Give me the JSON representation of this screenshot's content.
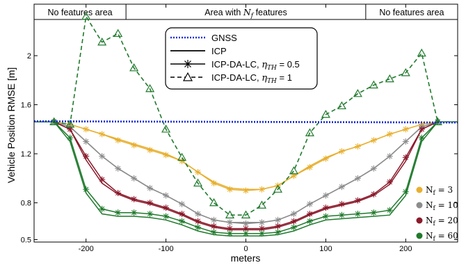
{
  "chart_data": {
    "type": "line",
    "xlabel": "meters",
    "ylabel": "Vehicle Position RMSE [m]",
    "xlim": [
      -265,
      265
    ],
    "ylim": [
      0.48,
      2.42
    ],
    "xticks": [
      -200,
      -100,
      0,
      100,
      200
    ],
    "xtick_labels": [
      "-200",
      "-100",
      "0",
      "100",
      "200"
    ],
    "yticks": [
      0.5,
      0.8,
      1.2,
      1.6,
      2.0
    ],
    "ytick_labels": [
      "0.5",
      "0.8",
      "1.2",
      "1.6",
      "2"
    ],
    "regions": [
      {
        "label": "No features area",
        "from": -265,
        "to": -150
      },
      {
        "label": "Area with N_f features",
        "from": -150,
        "to": 150
      },
      {
        "label": "No features area",
        "from": 150,
        "to": 265
      }
    ],
    "legend": {
      "gnss": "GNSS",
      "icp": "ICP",
      "icp_da_lc_05": "ICP-DA-LC, η_TH = 0.5",
      "icp_da_lc_1": "ICP-DA-LC, η_TH = 1"
    },
    "nf_legend": [
      {
        "label": "N_f =  3",
        "color": "#e8b030"
      },
      {
        "label": "N_f = 10",
        "color": "#8c8c8c"
      },
      {
        "label": "N_f = 20",
        "color": "#8b1a2b"
      },
      {
        "label": "N_f = 60",
        "color": "#1f7a2c"
      }
    ],
    "gnss": {
      "color": "#1a2fd9",
      "x": [
        -265,
        265
      ],
      "y": [
        1.465,
        1.455
      ]
    },
    "series": [
      {
        "name": "N_f = 3",
        "color": "#e8b030",
        "x": [
          -265,
          -240,
          -220,
          -200,
          -180,
          -160,
          -140,
          -120,
          -100,
          -80,
          -60,
          -40,
          -20,
          0,
          20,
          40,
          60,
          80,
          100,
          120,
          140,
          160,
          180,
          200,
          220,
          240,
          265
        ],
        "icp": [
          1.46,
          1.46,
          1.44,
          1.4,
          1.36,
          1.32,
          1.28,
          1.24,
          1.2,
          1.14,
          1.05,
          0.97,
          0.92,
          0.91,
          0.91,
          0.94,
          1.02,
          1.1,
          1.17,
          1.22,
          1.26,
          1.31,
          1.36,
          1.4,
          1.44,
          1.46,
          1.46
        ],
        "lc05": [
          1.46,
          1.46,
          1.44,
          1.4,
          1.36,
          1.31,
          1.27,
          1.23,
          1.19,
          1.14,
          1.05,
          0.96,
          0.91,
          0.9,
          0.91,
          0.94,
          1.02,
          1.09,
          1.16,
          1.22,
          1.26,
          1.31,
          1.36,
          1.4,
          1.44,
          1.46,
          1.46
        ],
        "lc1": null
      },
      {
        "name": "N_f = 10",
        "color": "#8c8c8c",
        "x": [
          -265,
          -240,
          -220,
          -200,
          -180,
          -160,
          -140,
          -120,
          -100,
          -80,
          -60,
          -40,
          -20,
          0,
          20,
          40,
          60,
          80,
          100,
          120,
          140,
          160,
          180,
          200,
          220,
          240,
          265
        ],
        "icp": [
          1.46,
          1.46,
          1.42,
          1.3,
          1.18,
          1.08,
          1.0,
          0.92,
          0.86,
          0.79,
          0.71,
          0.66,
          0.64,
          0.64,
          0.64,
          0.66,
          0.71,
          0.79,
          0.86,
          0.93,
          1.0,
          1.08,
          1.18,
          1.3,
          1.42,
          1.46,
          1.46
        ],
        "lc05": [
          1.46,
          1.46,
          1.42,
          1.3,
          1.18,
          1.08,
          1.0,
          0.92,
          0.86,
          0.79,
          0.71,
          0.66,
          0.64,
          0.63,
          0.64,
          0.66,
          0.71,
          0.79,
          0.86,
          0.93,
          1.0,
          1.08,
          1.18,
          1.3,
          1.42,
          1.46,
          1.46
        ],
        "lc1": null
      },
      {
        "name": "N_f = 20",
        "color": "#8b1a2b",
        "x": [
          -265,
          -240,
          -220,
          -200,
          -180,
          -160,
          -140,
          -120,
          -100,
          -80,
          -60,
          -40,
          -20,
          0,
          20,
          40,
          60,
          80,
          100,
          120,
          140,
          160,
          180,
          200,
          220,
          240,
          265
        ],
        "icp": [
          1.46,
          1.46,
          1.4,
          1.15,
          0.96,
          0.87,
          0.82,
          0.79,
          0.75,
          0.7,
          0.64,
          0.6,
          0.58,
          0.58,
          0.58,
          0.6,
          0.64,
          0.7,
          0.75,
          0.78,
          0.81,
          0.86,
          0.95,
          1.14,
          1.4,
          1.46,
          1.46
        ],
        "lc05": [
          1.46,
          1.46,
          1.4,
          1.18,
          0.99,
          0.88,
          0.83,
          0.8,
          0.76,
          0.71,
          0.65,
          0.61,
          0.59,
          0.59,
          0.59,
          0.61,
          0.65,
          0.71,
          0.76,
          0.79,
          0.82,
          0.87,
          0.97,
          1.17,
          1.4,
          1.46,
          1.46
        ],
        "lc1": null
      },
      {
        "name": "N_f = 60",
        "color": "#1f7a2c",
        "x": [
          -265,
          -240,
          -220,
          -200,
          -180,
          -160,
          -140,
          -120,
          -100,
          -80,
          -60,
          -40,
          -20,
          0,
          20,
          40,
          60,
          80,
          100,
          120,
          140,
          160,
          180,
          200,
          220,
          240,
          265
        ],
        "icp": [
          1.46,
          1.46,
          1.3,
          0.88,
          0.71,
          0.69,
          0.69,
          0.68,
          0.66,
          0.62,
          0.57,
          0.54,
          0.53,
          0.53,
          0.53,
          0.54,
          0.57,
          0.62,
          0.66,
          0.67,
          0.68,
          0.69,
          0.7,
          0.86,
          1.3,
          1.46,
          1.46
        ],
        "lc05": [
          1.46,
          1.46,
          1.33,
          0.91,
          0.75,
          0.72,
          0.72,
          0.71,
          0.69,
          0.65,
          0.6,
          0.56,
          0.55,
          0.55,
          0.55,
          0.56,
          0.6,
          0.65,
          0.69,
          0.7,
          0.71,
          0.72,
          0.74,
          0.89,
          1.33,
          1.46,
          1.46
        ],
        "lc1": {
          "x": [
            -265,
            -240,
            -220,
            -200,
            -180,
            -160,
            -140,
            -120,
            -100,
            -80,
            -60,
            -40,
            -20,
            0,
            20,
            40,
            60,
            80,
            100,
            120,
            140,
            160,
            180,
            200,
            220,
            240,
            265
          ],
          "y": [
            1.46,
            1.46,
            1.44,
            2.32,
            2.11,
            2.18,
            1.9,
            1.73,
            1.4,
            1.17,
            0.96,
            0.8,
            0.7,
            0.7,
            0.78,
            0.91,
            1.06,
            1.37,
            1.52,
            1.59,
            1.69,
            1.76,
            1.81,
            1.86,
            2.02,
            1.46,
            1.46
          ]
        }
      }
    ]
  }
}
